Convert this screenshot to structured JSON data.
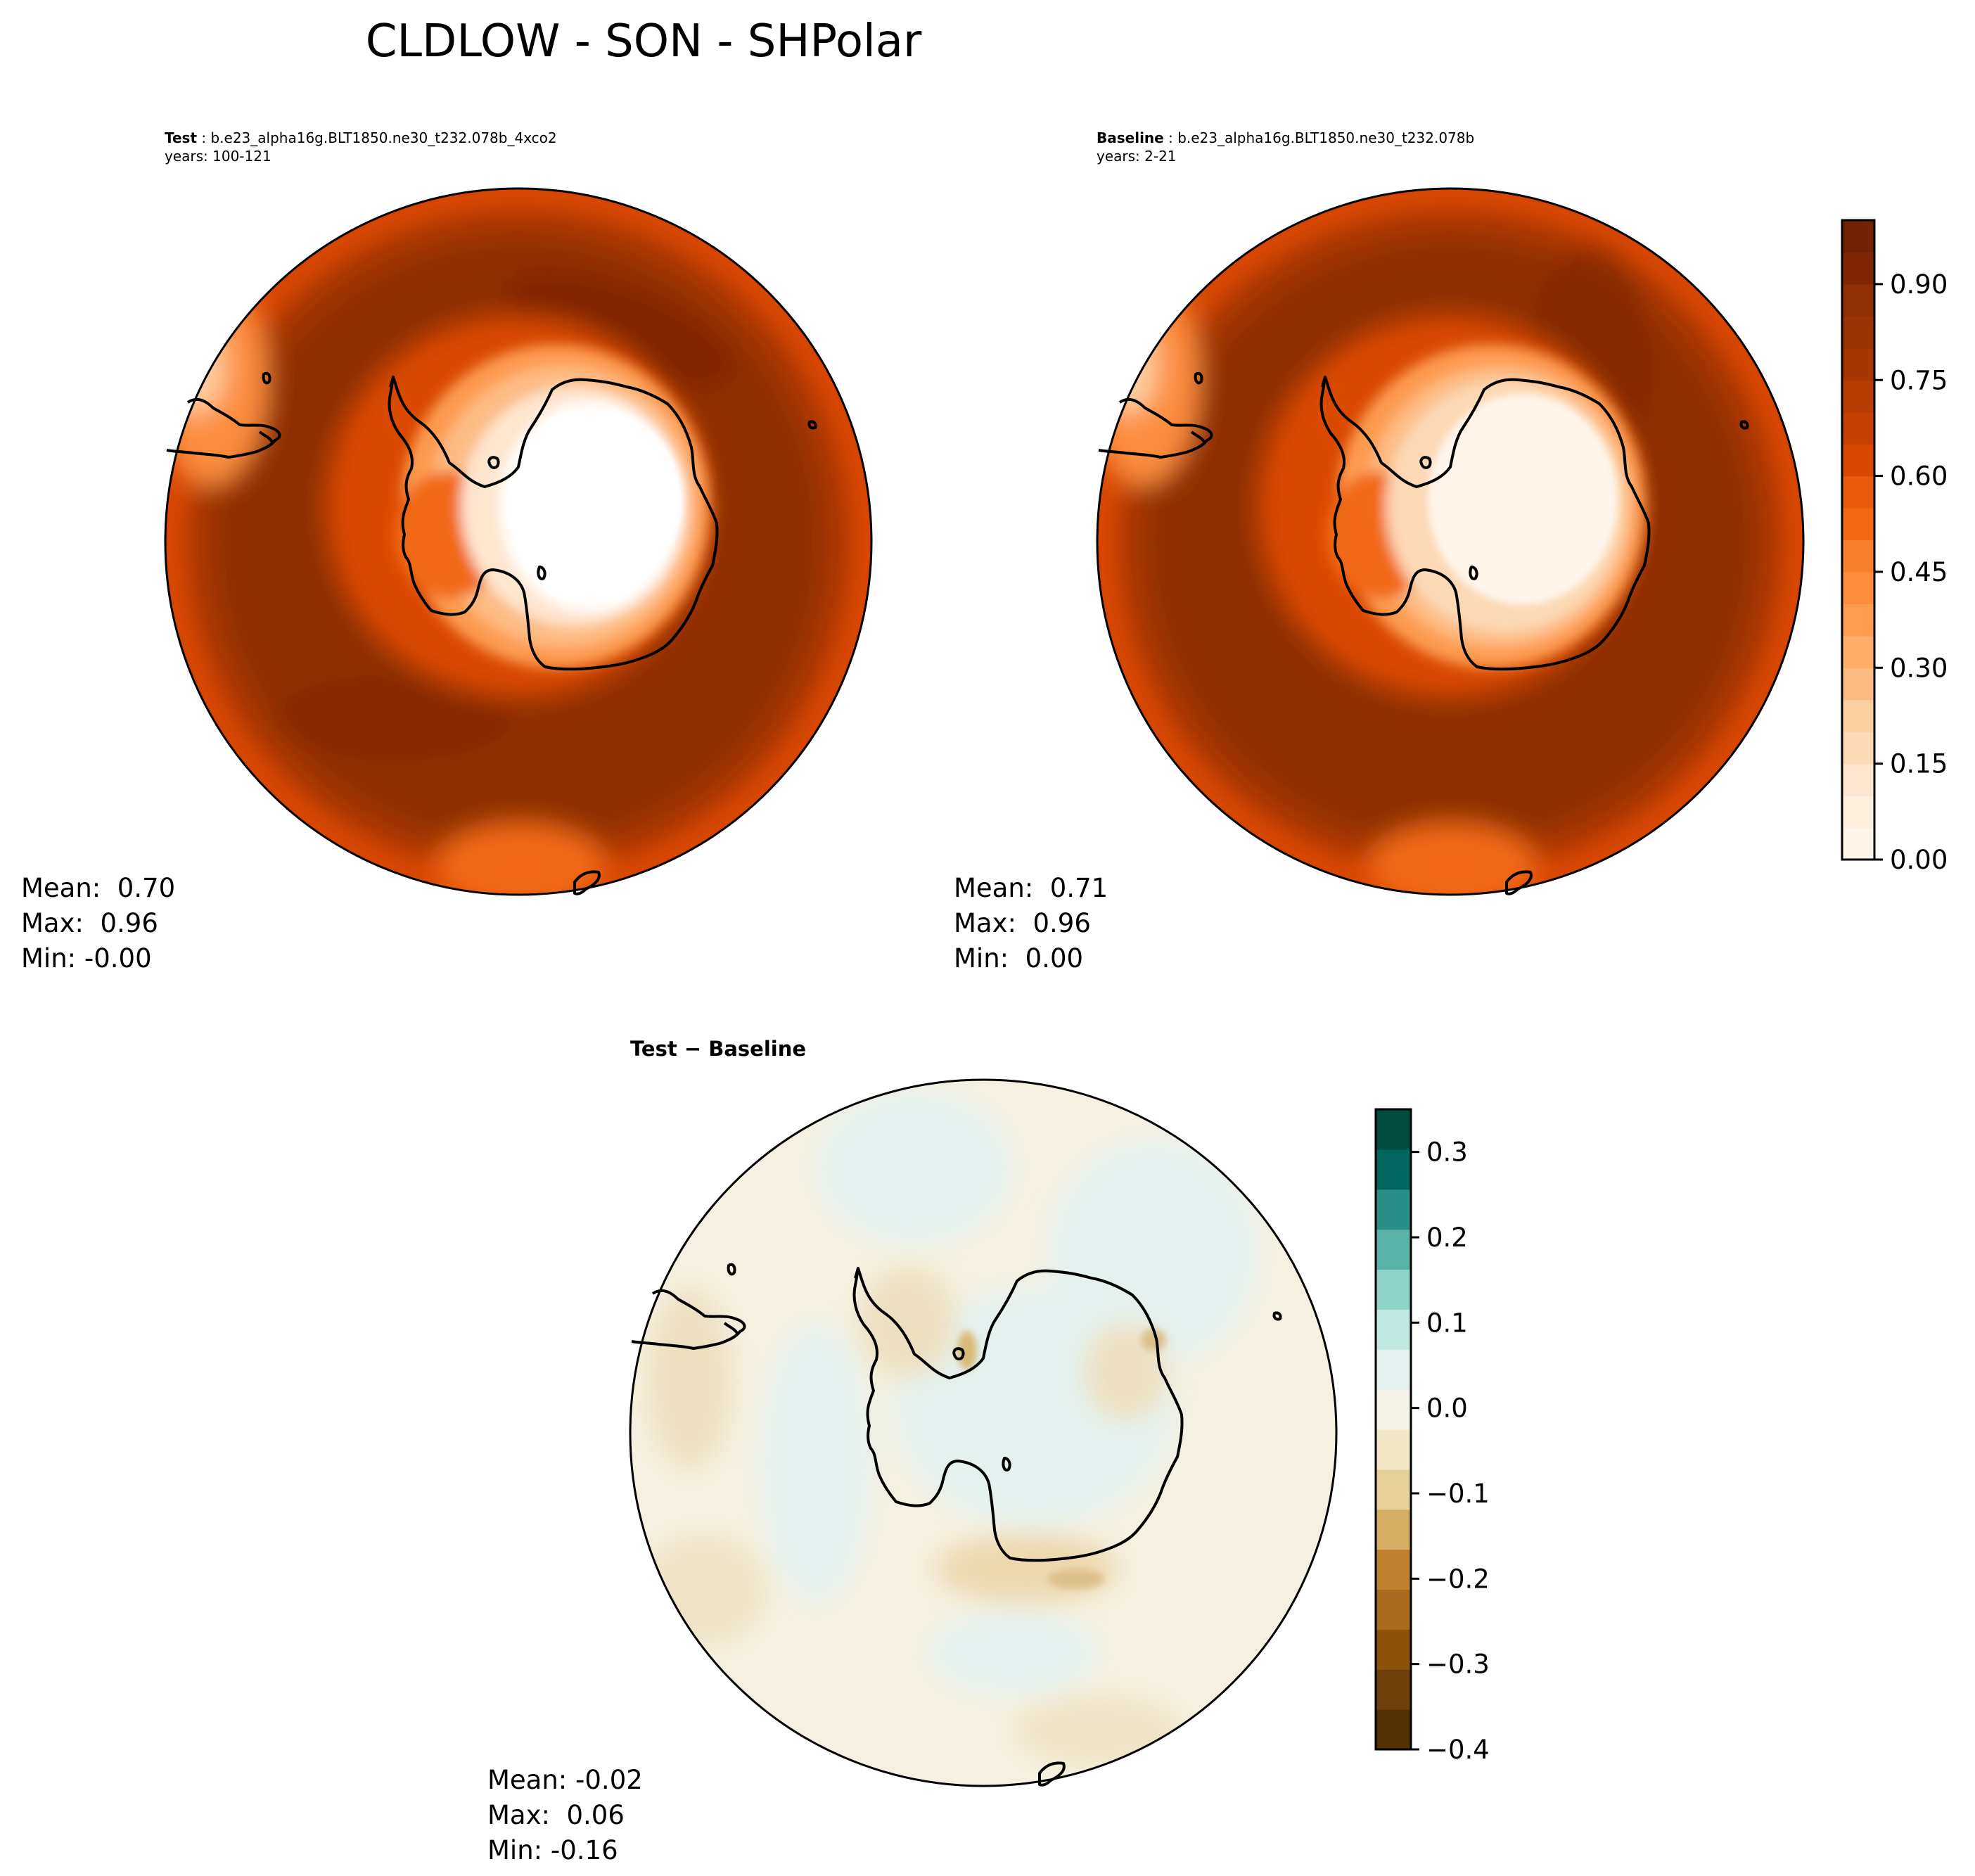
{
  "title": "CLDLOW - SON - SHPolar",
  "test": {
    "label": "Test",
    "case": "b.e23_alpha16g.BLT1850.ne30_t232.078b_4xco2",
    "years": "years: 100-121",
    "stats": "Mean:  0.70\nMax:  0.96\nMin: -0.00"
  },
  "baseline": {
    "label": "Baseline",
    "case": "b.e23_alpha16g.BLT1850.ne30_t232.078b",
    "years": "years: 2-21",
    "stats": "Mean:  0.71\nMax:  0.96\nMin:  0.00"
  },
  "diff": {
    "title": "Test − Baseline",
    "stats": "Mean: -0.02\nMax:  0.06\nMin: -0.16"
  },
  "chart_data": [
    {
      "type": "heatmap",
      "projection": "south-polar-stereographic",
      "panel": "test",
      "colormap": "Oranges",
      "color_range": [
        0.0,
        1.0
      ],
      "levels": [
        0.0,
        0.05,
        0.1,
        0.15,
        0.2,
        0.25,
        0.3,
        0.35,
        0.4,
        0.45,
        0.5,
        0.55,
        0.6,
        0.65,
        0.7,
        0.75,
        0.8,
        0.85,
        0.9,
        0.95,
        1.0
      ],
      "stats": {
        "mean": 0.7,
        "max": 0.96,
        "min": -0.0
      }
    },
    {
      "type": "heatmap",
      "projection": "south-polar-stereographic",
      "panel": "baseline",
      "colormap": "Oranges",
      "color_range": [
        0.0,
        1.0
      ],
      "levels": [
        0.0,
        0.05,
        0.1,
        0.15,
        0.2,
        0.25,
        0.3,
        0.35,
        0.4,
        0.45,
        0.5,
        0.55,
        0.6,
        0.65,
        0.7,
        0.75,
        0.8,
        0.85,
        0.9,
        0.95,
        1.0
      ],
      "colorbar_ticks": [
        "0.00",
        "0.15",
        "0.30",
        "0.45",
        "0.60",
        "0.75",
        "0.90"
      ],
      "colorbar_tick_values": [
        0.0,
        0.15,
        0.3,
        0.45,
        0.6,
        0.75,
        0.9
      ],
      "stats": {
        "mean": 0.71,
        "max": 0.96,
        "min": 0.0
      }
    },
    {
      "type": "heatmap",
      "projection": "south-polar-stereographic",
      "panel": "difference",
      "colormap": "BrBG",
      "color_range": [
        -0.4,
        0.35
      ],
      "levels": [
        -0.4,
        -0.35,
        -0.3,
        -0.25,
        -0.2,
        -0.15,
        -0.1,
        -0.05,
        0.0,
        0.05,
        0.1,
        0.15,
        0.2,
        0.25,
        0.3,
        0.35
      ],
      "colorbar_ticks": [
        "−0.4",
        "−0.3",
        "−0.2",
        "−0.1",
        "0.0",
        "0.1",
        "0.2",
        "0.3"
      ],
      "colorbar_tick_values": [
        -0.4,
        -0.3,
        -0.2,
        -0.1,
        0.0,
        0.1,
        0.2,
        0.3
      ],
      "stats": {
        "mean": -0.02,
        "max": 0.06,
        "min": -0.16
      }
    }
  ],
  "colors": {
    "oranges": [
      "#fff5eb",
      "#ffefdf",
      "#fee6ce",
      "#fdd9b5",
      "#fdd0a2",
      "#fdbb84",
      "#fdae6b",
      "#fd9b4f",
      "#fd8d3c",
      "#f87f2c",
      "#f16913",
      "#e85b0a",
      "#d94801",
      "#c54102",
      "#b53c02",
      "#a63603",
      "#9a3203",
      "#8f2f04",
      "#7f2704",
      "#702204"
    ],
    "brbg": [
      "#543005",
      "#6f3f0a",
      "#8c510a",
      "#a9691f",
      "#bf812d",
      "#d5ae63",
      "#e6d19b",
      "#f1e7c4",
      "#f5f3e8",
      "#e4f1ef",
      "#c0e9e2",
      "#8ed4c6",
      "#5ab2a6",
      "#2a8f86",
      "#01665e",
      "#004d40"
    ],
    "coastline": "#000000"
  }
}
